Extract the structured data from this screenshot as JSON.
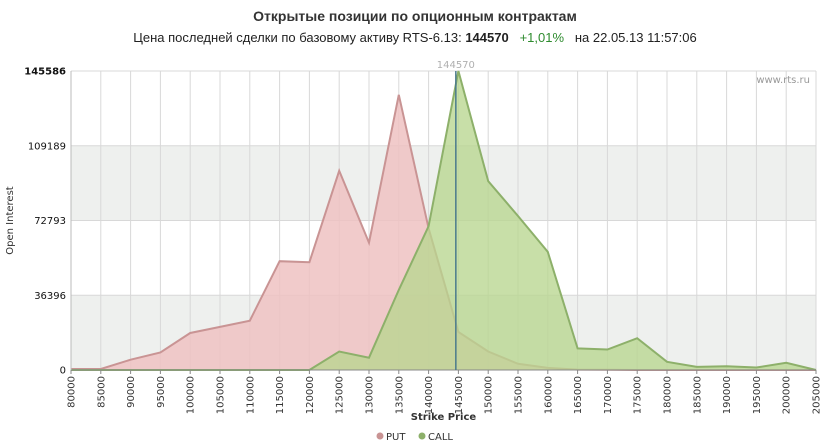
{
  "header": {
    "title": "Открытые позиции по опционным контрактам",
    "subtitle_prefix": "Цена последней сделки по базовому активу RTS-6.13:",
    "last_price": "144570",
    "change": "+1,01%",
    "date_text": "на 22.05.13 11:57:06"
  },
  "watermark": "www.rts.ru",
  "colors": {
    "put_fill": "#eec2c2",
    "put_line": "#c99494",
    "call_fill": "#b8d690",
    "call_line": "#8db06a",
    "price_line": "#4a7a8c",
    "band": "#eef0ee",
    "grid": "#d8d8d8",
    "change": "#2e8b2e"
  },
  "chart_data": {
    "type": "area",
    "xlabel": "Strike Price",
    "ylabel": "Open Interest",
    "xlim": [
      80000,
      205000
    ],
    "ylim": [
      0,
      145586
    ],
    "x_ticks": [
      80000,
      85000,
      90000,
      95000,
      100000,
      105000,
      110000,
      115000,
      120000,
      125000,
      130000,
      135000,
      140000,
      145000,
      150000,
      155000,
      160000,
      165000,
      170000,
      175000,
      180000,
      185000,
      190000,
      195000,
      200000,
      205000
    ],
    "y_ticks": [
      0,
      36396,
      72793,
      109189,
      145586
    ],
    "y_tick_labels": [
      "0",
      "36396",
      "72793",
      "109189",
      "145586"
    ],
    "grid": true,
    "legend_position": "bottom-center",
    "price_marker": {
      "x": 144570,
      "label": "144570"
    },
    "x": [
      80000,
      85000,
      90000,
      95000,
      100000,
      105000,
      110000,
      115000,
      120000,
      125000,
      130000,
      135000,
      140000,
      145000,
      150000,
      155000,
      160000,
      165000,
      170000,
      175000,
      180000,
      185000,
      190000,
      195000,
      200000,
      205000
    ],
    "series": [
      {
        "name": "PUT",
        "values": [
          500,
          500,
          5000,
          8500,
          18000,
          21000,
          24000,
          53000,
          52500,
          97000,
          62000,
          134000,
          69000,
          18500,
          9000,
          3000,
          1000,
          200,
          100,
          0,
          0,
          0,
          0,
          0,
          0,
          0
        ]
      },
      {
        "name": "CALL",
        "values": [
          0,
          0,
          0,
          0,
          0,
          0,
          0,
          0,
          0,
          9000,
          6000,
          39000,
          70000,
          145586,
          92000,
          75000,
          57500,
          10500,
          10000,
          15500,
          4000,
          1500,
          1800,
          1200,
          3500,
          0
        ]
      }
    ]
  }
}
